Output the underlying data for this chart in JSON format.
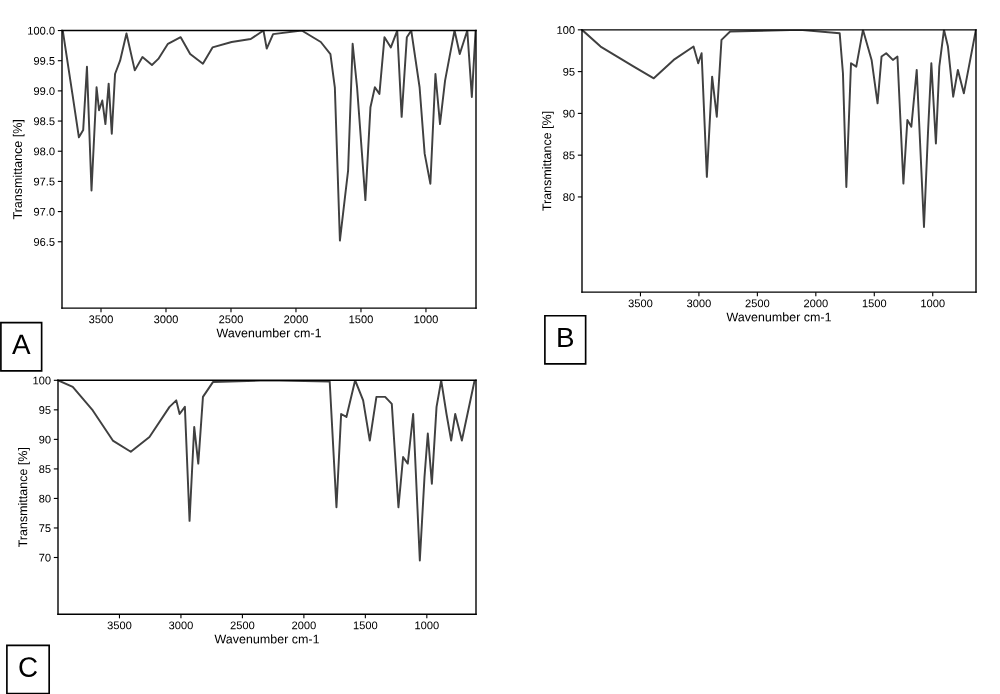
{
  "chart_data": [
    {
      "type": "line",
      "xlabel": "Wavenumber cm-1",
      "ylabel": "Transmittance [%]",
      "annotations": [
        "A"
      ],
      "xlim": [
        3800,
        615
      ],
      "xticks": [
        3500,
        3000,
        2500,
        2000,
        1500,
        1000
      ],
      "ylim": [
        95.4,
        100.0
      ],
      "yticks": [
        {
          "value": 96.5,
          "label": "96.5"
        },
        {
          "value": 97.0,
          "label": "97.0"
        },
        {
          "value": 97.5,
          "label": "97.5"
        },
        {
          "value": 98.0,
          "label": "98.0"
        },
        {
          "value": 98.5,
          "label": "98.5"
        },
        {
          "value": 99.0,
          "label": "99.0"
        },
        {
          "value": 99.5,
          "label": "99.5"
        },
        {
          "value": 100.0,
          "label": "100.0"
        }
      ],
      "series": [
        {
          "color": "#404040",
          "x": [
            3794,
            3720,
            3670,
            3637,
            3608,
            3573,
            3534,
            3515,
            3490,
            3466,
            3441,
            3417,
            3392,
            3353,
            3304,
            3240,
            3181,
            3108,
            3059,
            2985,
            2887,
            2814,
            2716,
            2642,
            2495,
            2348,
            2250,
            2225,
            2176,
            1956,
            1809,
            1735,
            1701,
            1662,
            1623,
            1599,
            1564,
            1530,
            1466,
            1427,
            1393,
            1358,
            1319,
            1270,
            1221,
            1187,
            1147,
            1113,
            1049,
            1010,
            966,
            927,
            892,
            853,
            819,
            780,
            740,
            682,
            647,
            618
          ],
          "values": [
            100.0,
            98.95,
            98.23,
            98.35,
            99.4,
            97.35,
            99.06,
            98.68,
            98.84,
            98.45,
            99.12,
            98.29,
            99.28,
            99.5,
            99.95,
            99.34,
            99.56,
            99.43,
            99.53,
            99.78,
            99.89,
            99.61,
            99.45,
            99.72,
            99.81,
            99.86,
            100.0,
            99.7,
            99.94,
            100.0,
            99.81,
            99.61,
            99.06,
            96.52,
            97.24,
            97.68,
            99.78,
            99.06,
            97.19,
            98.73,
            99.06,
            98.95,
            99.89,
            99.72,
            100.0,
            98.57,
            99.89,
            100.0,
            99.06,
            97.96,
            97.46,
            99.28,
            98.45,
            99.17,
            99.56,
            100.0,
            99.61,
            100.0,
            98.9,
            100.0
          ]
        }
      ]
    },
    {
      "type": "line",
      "xlabel": "Wavenumber cm-1",
      "ylabel": "Transmittance [%]",
      "annotations": [
        "B"
      ],
      "xlim": [
        4000,
        630
      ],
      "xticks": [
        3500,
        3000,
        2500,
        2000,
        1500,
        1000
      ],
      "ylim": [
        68.6,
        100
      ],
      "yticks": [
        80,
        85,
        90,
        95,
        100
      ],
      "series": [
        {
          "color": "#404040",
          "x": [
            4000,
            3841,
            3699,
            3557,
            3386,
            3216,
            3046,
            3006,
            2977,
            2932,
            2887,
            2847,
            2807,
            2733,
            2137,
            1796,
            1768,
            1739,
            1699,
            1654,
            1597,
            1523,
            1472,
            1438,
            1398,
            1341,
            1302,
            1251,
            1217,
            1183,
            1137,
            1075,
            1041,
            1012,
            973,
            944,
            904,
            870,
            825,
            785,
            734,
            631
          ],
          "values": [
            100,
            98.0,
            96.8,
            95.6,
            94.2,
            96.4,
            98.0,
            96.0,
            97.2,
            82.4,
            94.4,
            89.6,
            98.8,
            99.8,
            100,
            99.6,
            94.8,
            81.2,
            96.0,
            95.6,
            100,
            96.4,
            91.2,
            96.8,
            97.2,
            96.4,
            96.8,
            81.6,
            89.2,
            88.4,
            95.2,
            76.4,
            87.6,
            96.0,
            86.4,
            95.6,
            100,
            98.0,
            92.0,
            95.2,
            92.4,
            100
          ]
        }
      ]
    },
    {
      "type": "line",
      "xlabel": "Wavenumber cm-1",
      "ylabel": "Transmittance [%]",
      "annotations": [
        "C"
      ],
      "xlim": [
        4000,
        600
      ],
      "xticks": [
        3500,
        3000,
        2500,
        2000,
        1500,
        1000
      ],
      "ylim": [
        60.4,
        100
      ],
      "yticks": [
        70,
        75,
        80,
        85,
        90,
        95,
        100
      ],
      "series": [
        {
          "color": "#404040",
          "x": [
            4000,
            3880,
            3717,
            3554,
            3408,
            3256,
            3093,
            3038,
            3011,
            2968,
            2930,
            2892,
            2859,
            2821,
            2740,
            2305,
            1790,
            1735,
            1697,
            1654,
            1583,
            1518,
            1464,
            1410,
            1339,
            1285,
            1231,
            1193,
            1155,
            1111,
            1057,
            1019,
            992,
            959,
            921,
            883,
            840,
            802,
            769,
            715,
            611
          ],
          "values": [
            100,
            98.9,
            94.9,
            89.8,
            87.9,
            90.4,
            95.5,
            96.6,
            94.3,
            95.5,
            76.2,
            92.1,
            85.9,
            97.2,
            99.7,
            100,
            99.8,
            78.5,
            94.3,
            93.8,
            100,
            96.6,
            89.8,
            97.2,
            97.2,
            96.0,
            78.5,
            87.0,
            85.9,
            94.3,
            69.5,
            83.6,
            91.0,
            82.5,
            95.5,
            100,
            94.3,
            89.8,
            94.3,
            89.8,
            100
          ]
        }
      ]
    }
  ]
}
